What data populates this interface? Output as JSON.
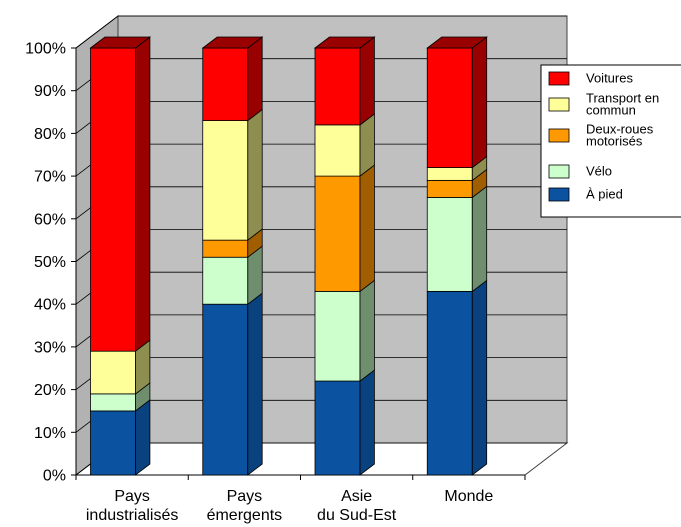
{
  "chart_data": {
    "type": "bar",
    "stacked": true,
    "three_d": true,
    "categories": [
      [
        "Pays",
        "industrialisés"
      ],
      [
        "Pays",
        "émergents"
      ],
      [
        "Asie",
        "du Sud-Est"
      ],
      [
        "Monde"
      ]
    ],
    "series": [
      {
        "name": "À pied",
        "color": "#0B52A0",
        "side": "#0A4280",
        "values": [
          15,
          40,
          22,
          43
        ]
      },
      {
        "name": "Vélo",
        "color": "#CCFFCC",
        "side": "#6E8E6E",
        "values": [
          4,
          11,
          21,
          22
        ]
      },
      {
        "name": "Deux-roues motorisés",
        "color": "#FF9900",
        "side": "#A05E00",
        "values": [
          0,
          4,
          27,
          4
        ]
      },
      {
        "name": "Transport en commun",
        "color": "#FFFF99",
        "side": "#8E8E50",
        "values": [
          10,
          28,
          12,
          3
        ]
      },
      {
        "name": "Voitures",
        "color": "#FF0000",
        "side": "#990000",
        "values": [
          71,
          17,
          18,
          28
        ]
      }
    ],
    "legend_labels": [
      {
        "series": "Voitures",
        "lines": [
          "Voitures"
        ]
      },
      {
        "series": "Transport en commun",
        "lines": [
          "Transport en",
          "commun"
        ]
      },
      {
        "series": "Deux-roues motorisés",
        "lines": [
          "Deux-roues",
          "motorisés"
        ]
      },
      {
        "series": "Vélo",
        "lines": [
          "Vélo"
        ]
      },
      {
        "series": "À pied",
        "lines": [
          "À pied"
        ]
      }
    ],
    "ylim": [
      0,
      100
    ],
    "yticks": [
      "0%",
      "10%",
      "20%",
      "30%",
      "40%",
      "50%",
      "60%",
      "70%",
      "80%",
      "90%",
      "100%"
    ],
    "grid": true,
    "legend_position": "right",
    "wall_color": "#C0C0C0"
  }
}
